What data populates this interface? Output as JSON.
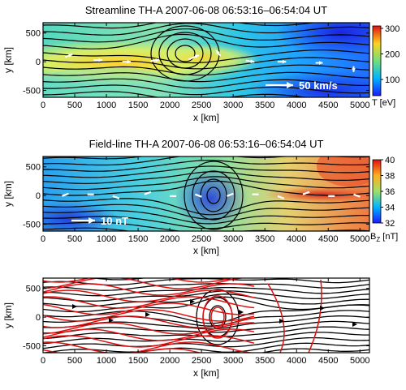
{
  "figure": {
    "panels": [
      {
        "title": "Streamline TH-A  2007-06-08  06:53:16–06:54:04 UT",
        "xlabel": "x [km]",
        "ylabel": "y [km]",
        "xticks": [
          "0",
          "500",
          "1000",
          "1500",
          "2000",
          "2500",
          "3000",
          "3500",
          "4000",
          "4500",
          "5000"
        ],
        "yticks": [
          "500",
          "0",
          "-500"
        ],
        "colorbar": {
          "label": "T [eV]",
          "ticks": [
            "300",
            "200",
            "100"
          ]
        },
        "annotation": "50 km/s"
      },
      {
        "title": "Field-line TH-A  2007-06-08  06:53:16–06:54:04 UT",
        "xlabel": "x [km]",
        "ylabel": "y [km]",
        "xticks": [
          "0",
          "500",
          "1000",
          "1500",
          "2000",
          "2500",
          "3000",
          "3500",
          "4000",
          "4500",
          "5000"
        ],
        "yticks": [
          "500",
          "0",
          "-500"
        ],
        "colorbar": {
          "label": "B",
          "label_sub": "Z",
          "label_unit": " [nT]",
          "ticks": [
            "40",
            "38",
            "36",
            "34",
            "32"
          ]
        },
        "annotation": "10 nT"
      },
      {
        "title": "",
        "xlabel": "x [km]",
        "ylabel": "y [km]",
        "xticks": [
          "0",
          "500",
          "1000",
          "1500",
          "2000",
          "2500",
          "3000",
          "3500",
          "4000",
          "4500",
          "5000"
        ],
        "yticks": [
          "500",
          "0",
          "-500"
        ]
      }
    ]
  },
  "chart_data": [
    {
      "type": "heatmap",
      "title": "Streamline TH-A  2007-06-08  06:53:16–06:54:04 UT",
      "xlabel": "x [km]",
      "ylabel": "y [km]",
      "xlim": [
        0,
        5150
      ],
      "ylim": [
        -620,
        680
      ],
      "colorbar": {
        "label": "T [eV]",
        "range": [
          60,
          300
        ]
      },
      "grid": false,
      "sample_vectors_kms": [
        {
          "x": 350,
          "y": 80,
          "vx": 25,
          "vy": 10
        },
        {
          "x": 800,
          "y": 30,
          "vx": 30,
          "vy": 0
        },
        {
          "x": 1250,
          "y": 0,
          "vx": 30,
          "vy": 0
        },
        {
          "x": 1700,
          "y": 10,
          "vx": 30,
          "vy": 5
        },
        {
          "x": 2300,
          "y": 40,
          "vx": 35,
          "vy": 15
        },
        {
          "x": 2800,
          "y": 100,
          "vx": -15,
          "vy": 20
        },
        {
          "x": 3200,
          "y": 20,
          "vx": 30,
          "vy": -5
        },
        {
          "x": 3700,
          "y": 0,
          "vx": 30,
          "vy": 0
        },
        {
          "x": 4300,
          "y": -20,
          "vx": 25,
          "vy": 0
        },
        {
          "x": 4900,
          "y": -80,
          "vx": 0,
          "vy": -20
        }
      ],
      "reference_vector": "50 km/s"
    },
    {
      "type": "heatmap",
      "title": "Field-line TH-A  2007-06-08  06:53:16–06:54:04 UT",
      "xlabel": "x [km]",
      "ylabel": "y [km]",
      "xlim": [
        0,
        5150
      ],
      "ylim": [
        -620,
        680
      ],
      "colorbar": {
        "label": "B_Z [nT]",
        "range": [
          32,
          40
        ]
      },
      "grid": false,
      "reference_vector": "10 nT"
    },
    {
      "type": "line",
      "title": "",
      "xlabel": "x [km]",
      "ylabel": "y [km]",
      "xlim": [
        0,
        5150
      ],
      "ylim": [
        -620,
        680
      ],
      "series_colors": [
        "#000000",
        "#dd1111"
      ],
      "grid": false
    }
  ],
  "colors": {
    "frame": "#000000",
    "title_text": "#ffffff",
    "vectors": "#ffffff",
    "field_line_red": "#dd1111"
  }
}
